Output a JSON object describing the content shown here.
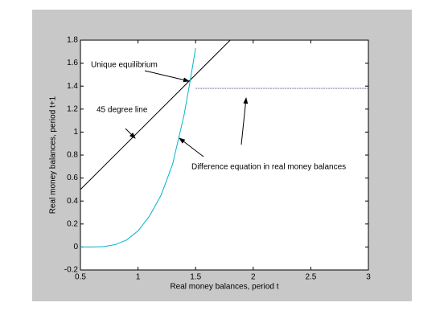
{
  "chart_data": {
    "type": "line",
    "xlabel": "Real money balances, period t",
    "ylabel": "Real money balances, period t+1",
    "xlim": [
      0.5,
      3
    ],
    "xticks": [
      0.5,
      1,
      1.5,
      2,
      2.5,
      3
    ],
    "ylim": [
      -0.2,
      1.8
    ],
    "yticks": [
      -0.2,
      0,
      0.2,
      0.4,
      0.6,
      0.8,
      1,
      1.2,
      1.4,
      1.6,
      1.8
    ],
    "series": [
      {
        "color": "#000000",
        "x": [
          0.5,
          1.8
        ],
        "values": [
          0.5,
          1.8
        ]
      },
      {
        "color": "#00b4c8",
        "x": [
          0.5,
          0.6,
          0.7,
          0.8,
          0.9,
          1.0,
          1.1,
          1.2,
          1.3,
          1.4,
          1.45,
          1.5
        ],
        "values": [
          0,
          0,
          0.003,
          0.02,
          0.06,
          0.14,
          0.27,
          0.45,
          0.72,
          1.15,
          1.43,
          1.73
        ]
      },
      {
        "color": "#7a6a9a",
        "dash": "2,1",
        "x": [
          1.5,
          3
        ],
        "values": [
          1.38,
          1.38
        ]
      }
    ],
    "annotations": [
      "Unique equilibrium",
      "45 degree line",
      "Difference equation in real money balances"
    ]
  }
}
